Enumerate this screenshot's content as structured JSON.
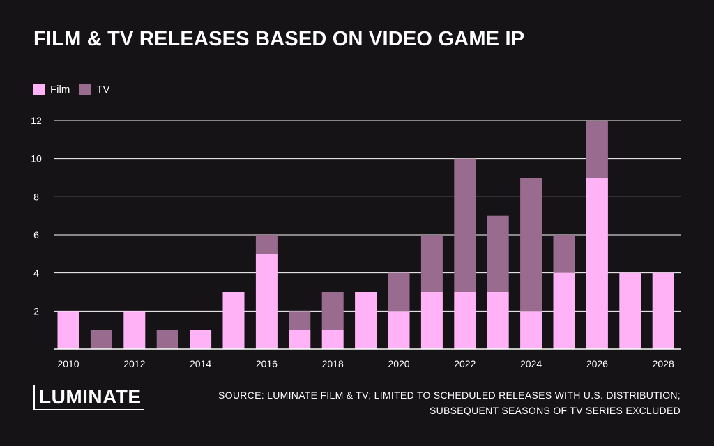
{
  "title": "FILM & TV RELEASES BASED ON VIDEO GAME IP",
  "logo_text": "LUMINATE",
  "source_lines": [
    "SOURCE: LUMINATE FILM & TV; LIMITED TO SCHEDULED RELEASES WITH U.S. DISTRIBUTION;",
    "SUBSEQUENT SEASONS OF TV SERIES EXCLUDED"
  ],
  "colors": {
    "film": "#ffb3f6",
    "tv": "#996b8f",
    "background": "#151316",
    "grid": "#ffffff"
  },
  "chart_data": {
    "type": "bar",
    "stacked": true,
    "title": "FILM & TV RELEASES BASED ON VIDEO GAME IP",
    "categories": [
      "2010",
      "2011",
      "2012",
      "2013",
      "2014",
      "2015",
      "2016",
      "2017",
      "2018",
      "2019",
      "2020",
      "2021",
      "2022",
      "2023",
      "2024",
      "2025",
      "2026",
      "2027",
      "2028"
    ],
    "x_tick_labels": [
      "2010",
      "2012",
      "2014",
      "2016",
      "2018",
      "2020",
      "2022",
      "2024",
      "2026",
      "2028"
    ],
    "series": [
      {
        "name": "Film",
        "values": [
          2,
          0,
          2,
          0,
          1,
          3,
          5,
          1,
          1,
          3,
          2,
          3,
          3,
          3,
          2,
          4,
          9,
          4,
          4
        ]
      },
      {
        "name": "TV",
        "values": [
          0,
          1,
          0,
          1,
          0,
          0,
          1,
          1,
          2,
          0,
          2,
          3,
          7,
          4,
          7,
          2,
          3,
          0,
          0
        ]
      }
    ],
    "ylim": [
      0,
      12
    ],
    "y_ticks": [
      2,
      4,
      6,
      8,
      10,
      12
    ],
    "grid": true,
    "legend_position": "top-left",
    "xlabel": "",
    "ylabel": ""
  }
}
